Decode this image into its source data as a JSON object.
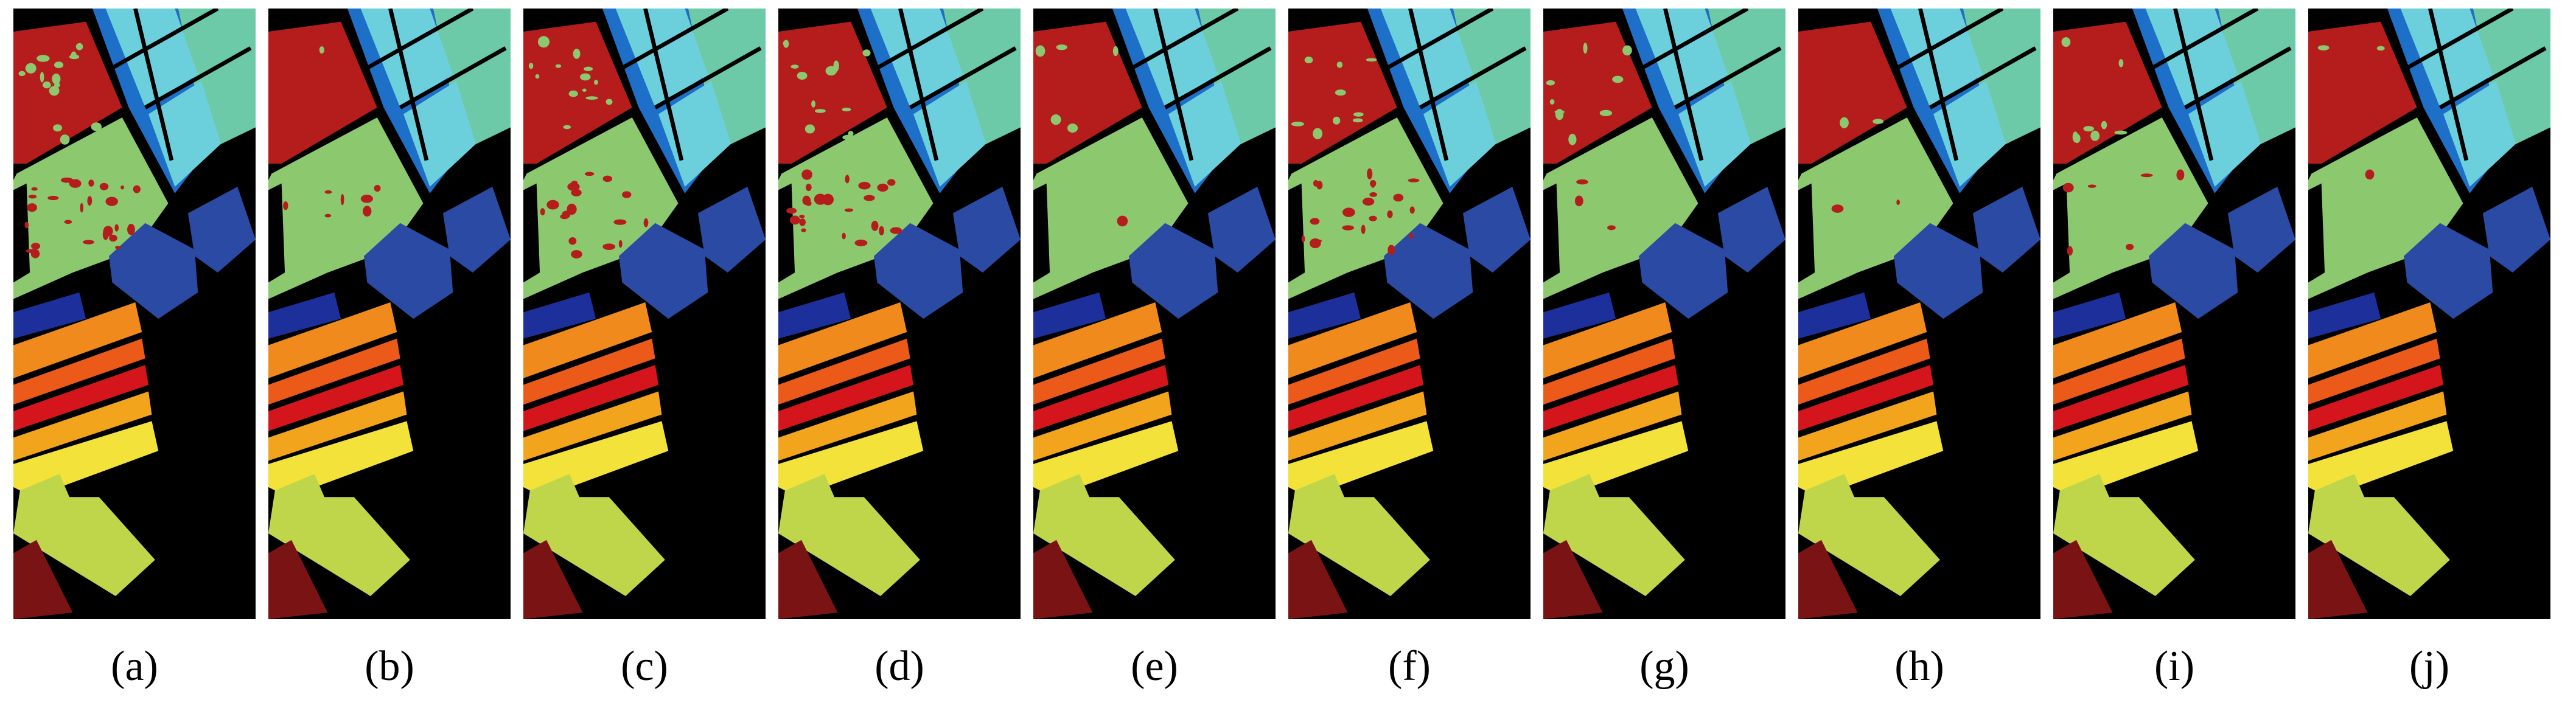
{
  "labels": [
    "(a)",
    "(b)",
    "(c)",
    "(d)",
    "(e)",
    "(f)",
    "(g)",
    "(h)",
    "(i)",
    "(j)"
  ]
}
